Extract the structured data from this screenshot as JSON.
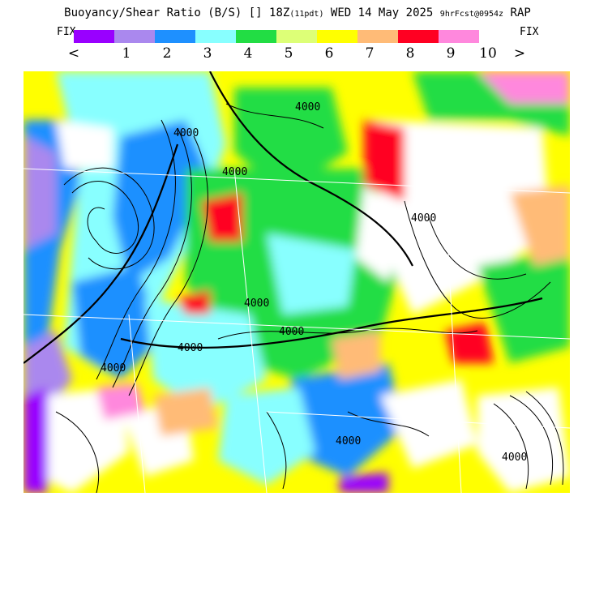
{
  "title": {
    "main": "Buoyancy/Shear Ratio (B/S) [] 18Z",
    "run": "(11pdt)",
    "date": "WED 14 May 2025",
    "forecast": "9hrFcst@0954z",
    "model": "RAP"
  },
  "legend": {
    "fix_left": "FIX",
    "fix_right": "FIX",
    "less_than": "<",
    "greater_than": ">",
    "tick_labels": [
      "1",
      "2",
      "3",
      "4",
      "5",
      "6",
      "7",
      "8",
      "9",
      "10"
    ],
    "colors": [
      "#9900ff",
      "#aa88ee",
      "#1e90ff",
      "#88ffff",
      "#22dd44",
      "#ddff77",
      "#ffff00",
      "#ffbb77",
      "#ff0022",
      "#ff88dd"
    ]
  },
  "map": {
    "contour_labels": [
      "4000",
      "4000",
      "4000",
      "4000",
      "4000",
      "4000",
      "4000",
      "4000",
      "4000",
      "4000"
    ]
  }
}
